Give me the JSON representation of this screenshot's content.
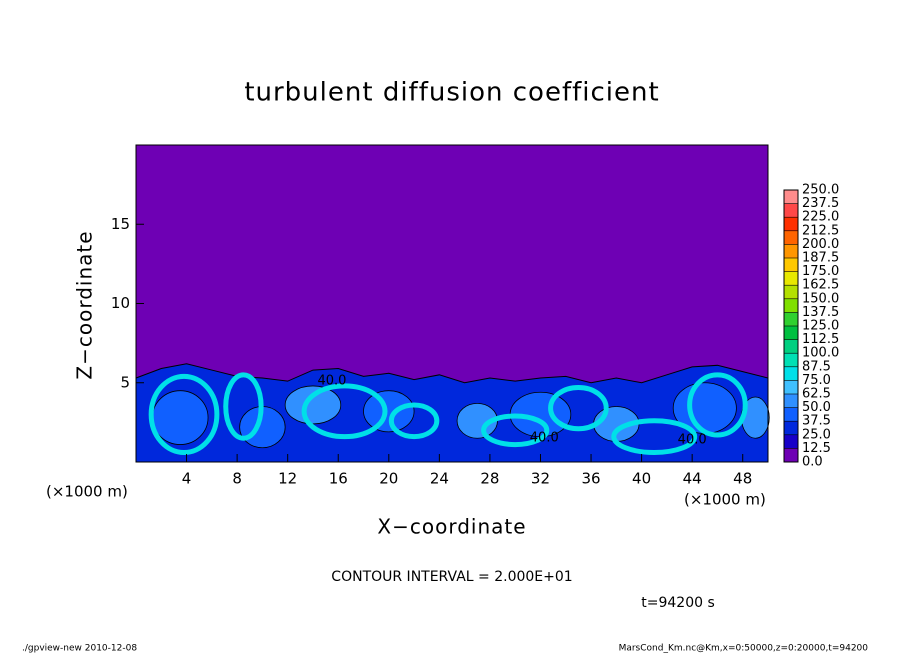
{
  "chart_data": {
    "type": "contour",
    "title": "turbulent diffusion coefficient",
    "xlabel": "X−coordinate",
    "ylabel": "Z−coordinate",
    "unit_label": "(×1000 m)",
    "xlim": [
      0,
      50
    ],
    "xticks": [
      4,
      8,
      12,
      16,
      20,
      24,
      28,
      32,
      36,
      40,
      44,
      48
    ],
    "ylim": [
      0,
      20
    ],
    "yticks": [
      5,
      10,
      15
    ],
    "colorbar": {
      "levels": [
        {
          "value": 0,
          "label": "0.0"
        },
        {
          "value": 12.5,
          "label": "12.5"
        },
        {
          "value": 25,
          "label": "25.0"
        },
        {
          "value": 37.5,
          "label": "37.5"
        },
        {
          "value": 50,
          "label": "50.0"
        },
        {
          "value": 62.5,
          "label": "62.5"
        },
        {
          "value": 75,
          "label": "75.0"
        },
        {
          "value": 87.5,
          "label": "87.5"
        },
        {
          "value": 100,
          "label": "100.0"
        },
        {
          "value": 112.5,
          "label": "112.5"
        },
        {
          "value": 125,
          "label": "125.0"
        },
        {
          "value": 137.5,
          "label": "137.5"
        },
        {
          "value": 150,
          "label": "150.0"
        },
        {
          "value": 162.5,
          "label": "162.5"
        },
        {
          "value": 175,
          "label": "175.0"
        },
        {
          "value": 187.5,
          "label": "187.5"
        },
        {
          "value": 200,
          "label": "200.0"
        },
        {
          "value": 212.5,
          "label": "212.5"
        },
        {
          "value": 225,
          "label": "225.0"
        },
        {
          "value": 237.5,
          "label": "237.5"
        },
        {
          "value": 250,
          "label": "250.0"
        }
      ],
      "colors": [
        "#6e00b4",
        "#1800c8",
        "#0028dc",
        "#1060ff",
        "#3090ff",
        "#40c0ff",
        "#00e0e8",
        "#00e0b4",
        "#00d080",
        "#00c040",
        "#30d030",
        "#80e000",
        "#b4e000",
        "#e8e800",
        "#ffc800",
        "#ff9600",
        "#ff6400",
        "#ff3000",
        "#ff4848",
        "#ff8c8c"
      ]
    },
    "contour_labels": [
      "40.0",
      "40.0",
      "40.0"
    ],
    "contour_interval_label": "CONTOUR INTERVAL = 2.000E+01",
    "time_label": "t=94200 s",
    "footer_left": "./gpview-new  2010-12-08",
    "footer_right": "MarsCond_Km.nc@Km,x=0:50000,z=0:20000,t=94200"
  }
}
